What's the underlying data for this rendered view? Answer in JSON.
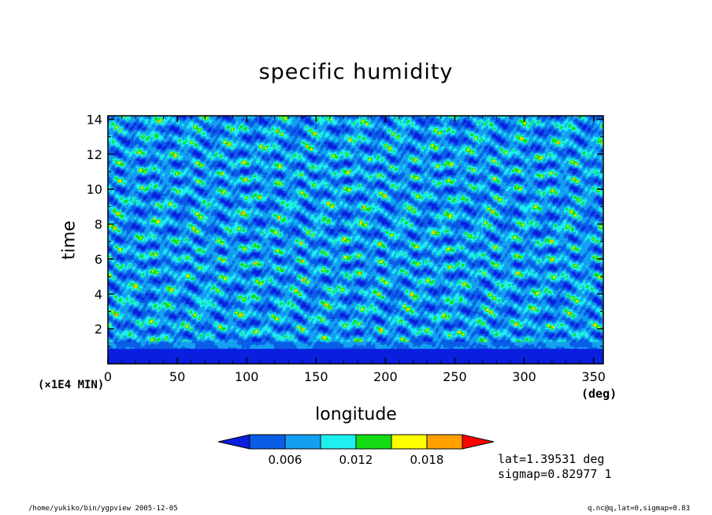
{
  "chart_data": {
    "type": "heatmap",
    "title": "specific humidity",
    "xlabel": "longitude",
    "ylabel": "time",
    "x_unit": "(deg)",
    "y_unit": "(×1E4 MIN)",
    "xlim": [
      0,
      357
    ],
    "ylim": [
      0,
      14.2
    ],
    "x_ticks": [
      0,
      50,
      100,
      150,
      200,
      250,
      300,
      350
    ],
    "y_ticks": [
      2,
      4,
      6,
      8,
      10,
      12,
      14
    ],
    "colorbar": {
      "levels": [
        0.003,
        0.006,
        0.009,
        0.012,
        0.015,
        0.018,
        0.021
      ],
      "tick_labels": [
        "0.006",
        "0.012",
        "0.018"
      ],
      "tick_values": [
        0.006,
        0.012,
        0.018
      ],
      "colors": [
        "#0a1ee0",
        "#0a5ee6",
        "#14a0f0",
        "#1ef0f0",
        "#14dc14",
        "#ffff00",
        "#ffa000",
        "#ff0000"
      ]
    },
    "field_summary": "near-zero humidity below time 1 (x1E4 MIN); above that, streaky fields mostly 0.006-0.012 with scattered patches up to 0.018"
  },
  "annotations": {
    "lat": "lat=1.39531 deg",
    "sigmap": "sigmap=0.82977 1"
  },
  "footer": {
    "left": "/home/yukiko/bin/ygpview  2005-12-05",
    "right": "q.nc@q,lat=0,sigmap=0.83"
  }
}
